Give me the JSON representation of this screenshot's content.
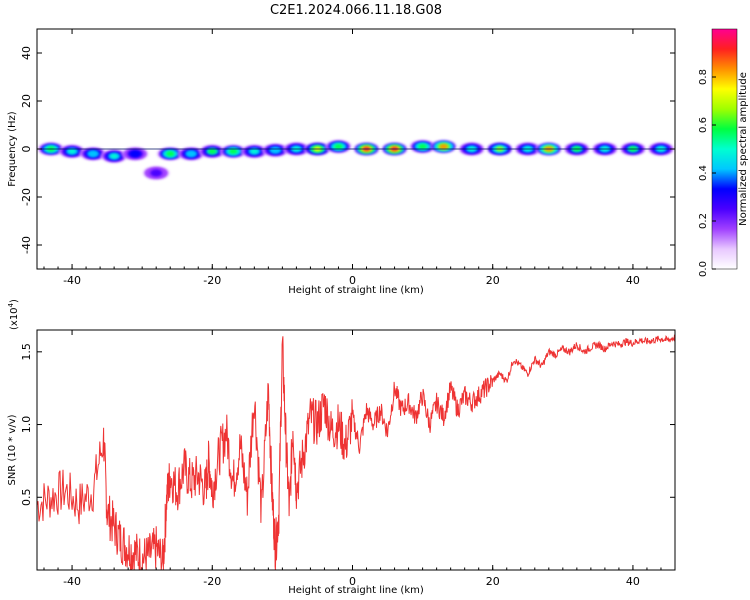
{
  "chart_data": [
    {
      "type": "heatmap",
      "title": "C2E1.2024.066.11.18.G08",
      "xlabel": "Height of straight line (km)",
      "ylabel": "Frequency (Hz)",
      "xlim": [
        -45,
        46
      ],
      "ylim": [
        -50,
        50
      ],
      "x_ticks": [
        -40,
        -20,
        0,
        20,
        40
      ],
      "x_tick_labels": [
        "-40",
        "-20",
        "0",
        "20",
        "40"
      ],
      "y_ticks": [
        -40,
        -20,
        0,
        20,
        40
      ],
      "y_tick_labels": [
        "-40",
        "-20",
        "0",
        "20",
        "40"
      ],
      "colorbar": {
        "label": "Normalized spectral amplitude",
        "range": [
          0,
          1
        ],
        "ticks": [
          0.0,
          0.2,
          0.4,
          0.6,
          0.8
        ],
        "tick_labels": [
          "0.0",
          "0.2",
          "0.4",
          "0.6",
          "0.8"
        ],
        "colormap": [
          "#ffffff",
          "#e8c8ff",
          "#a040ff",
          "#4a00ff",
          "#0000ff",
          "#00c8ff",
          "#00ffd0",
          "#00ff40",
          "#a0ff00",
          "#ffff00",
          "#ff9000",
          "#ff2020",
          "#ff0090"
        ]
      },
      "blobs": [
        {
          "x": -43,
          "y": 0,
          "a": 0.6
        },
        {
          "x": -40,
          "y": -1,
          "a": 0.5
        },
        {
          "x": -37,
          "y": -2,
          "a": 0.45
        },
        {
          "x": -34,
          "y": -3,
          "a": 0.5
        },
        {
          "x": -31,
          "y": -2,
          "a": 0.35
        },
        {
          "x": -28,
          "y": -10,
          "a": 0.25
        },
        {
          "x": -26,
          "y": -2,
          "a": 0.6
        },
        {
          "x": -23,
          "y": -2,
          "a": 0.45
        },
        {
          "x": -20,
          "y": -1,
          "a": 0.55
        },
        {
          "x": -17,
          "y": -1,
          "a": 0.6
        },
        {
          "x": -14,
          "y": -1,
          "a": 0.5
        },
        {
          "x": -11,
          "y": -0.5,
          "a": 0.45
        },
        {
          "x": -8,
          "y": 0,
          "a": 0.5
        },
        {
          "x": -5,
          "y": 0,
          "a": 0.75
        },
        {
          "x": -2,
          "y": 1,
          "a": 0.6
        },
        {
          "x": 2,
          "y": 0,
          "a": 0.95
        },
        {
          "x": 6,
          "y": 0,
          "a": 0.9
        },
        {
          "x": 10,
          "y": 1,
          "a": 0.6
        },
        {
          "x": 13,
          "y": 1,
          "a": 0.8
        },
        {
          "x": 17,
          "y": 0,
          "a": 0.5
        },
        {
          "x": 21,
          "y": 0,
          "a": 0.65
        },
        {
          "x": 25,
          "y": 0,
          "a": 0.5
        },
        {
          "x": 28,
          "y": 0,
          "a": 0.8
        },
        {
          "x": 32,
          "y": 0,
          "a": 0.55
        },
        {
          "x": 36,
          "y": 0,
          "a": 0.5
        },
        {
          "x": 40,
          "y": 0,
          "a": 0.55
        },
        {
          "x": 44,
          "y": 0,
          "a": 0.5
        }
      ]
    },
    {
      "type": "line",
      "xlabel": "Height of straight line (km)",
      "ylabel": "SNR (10 * v/v)",
      "y_multiplier_label": "(x10",
      "y_multiplier_exp": "4",
      "xlim": [
        -45,
        46
      ],
      "ylim": [
        0,
        1.65
      ],
      "x_ticks": [
        -40,
        -20,
        0,
        20,
        40
      ],
      "x_tick_labels": [
        "-40",
        "-20",
        "0",
        "20",
        "40"
      ],
      "y_ticks": [
        0.5,
        1.0,
        1.5
      ],
      "y_tick_labels": [
        "0.5",
        "1.0",
        "1.5"
      ],
      "color": "#ee3333",
      "series": [
        {
          "x": [
            -45,
            -43,
            -41,
            -39,
            -37,
            -35.5,
            -35,
            -34,
            -33,
            -32,
            -31,
            -30,
            -29,
            -28,
            -27,
            -26.5,
            -26,
            -25,
            -24,
            -23,
            -22,
            -21,
            -20.5,
            -20,
            -19,
            -18,
            -17,
            -16,
            -15,
            -14,
            -13,
            -12,
            -11.5,
            -11,
            -10.5,
            -10,
            -9.5,
            -9,
            -8.5,
            -8,
            -7,
            -6,
            -5,
            -4,
            -3,
            -2,
            -1,
            0,
            1,
            2,
            3,
            4,
            5,
            6,
            7,
            8,
            9,
            10,
            11,
            12,
            13,
            14,
            15,
            16,
            17,
            18,
            19,
            20,
            21,
            22,
            23,
            24,
            25,
            26,
            27,
            28,
            29,
            30,
            31,
            32,
            33,
            34,
            35,
            36,
            37,
            38,
            39,
            40,
            41,
            42,
            43,
            44,
            45,
            46
          ],
          "values": [
            0.45,
            0.5,
            0.55,
            0.45,
            0.55,
            0.9,
            0.4,
            0.3,
            0.2,
            0.15,
            0.12,
            0.08,
            0.1,
            0.15,
            0.05,
            0.5,
            0.65,
            0.55,
            0.7,
            0.6,
            0.65,
            0.55,
            0.75,
            0.55,
            0.8,
            0.95,
            0.6,
            0.85,
            0.5,
            1.2,
            0.4,
            1.25,
            0.55,
            0.15,
            0.4,
            1.55,
            0.9,
            0.4,
            1.0,
            0.55,
            0.8,
            1.05,
            1.0,
            1.15,
            0.95,
            1.0,
            0.85,
            1.05,
            0.85,
            1.1,
            1.0,
            1.1,
            0.95,
            1.25,
            1.1,
            1.15,
            1.05,
            1.2,
            1.0,
            1.15,
            1.05,
            1.25,
            1.1,
            1.2,
            1.15,
            1.2,
            1.25,
            1.3,
            1.35,
            1.3,
            1.45,
            1.4,
            1.35,
            1.45,
            1.4,
            1.5,
            1.48,
            1.52,
            1.5,
            1.55,
            1.5,
            1.53,
            1.55,
            1.52,
            1.56,
            1.55,
            1.57,
            1.56,
            1.58,
            1.57,
            1.58,
            1.59,
            1.58,
            1.6
          ]
        }
      ]
    }
  ]
}
